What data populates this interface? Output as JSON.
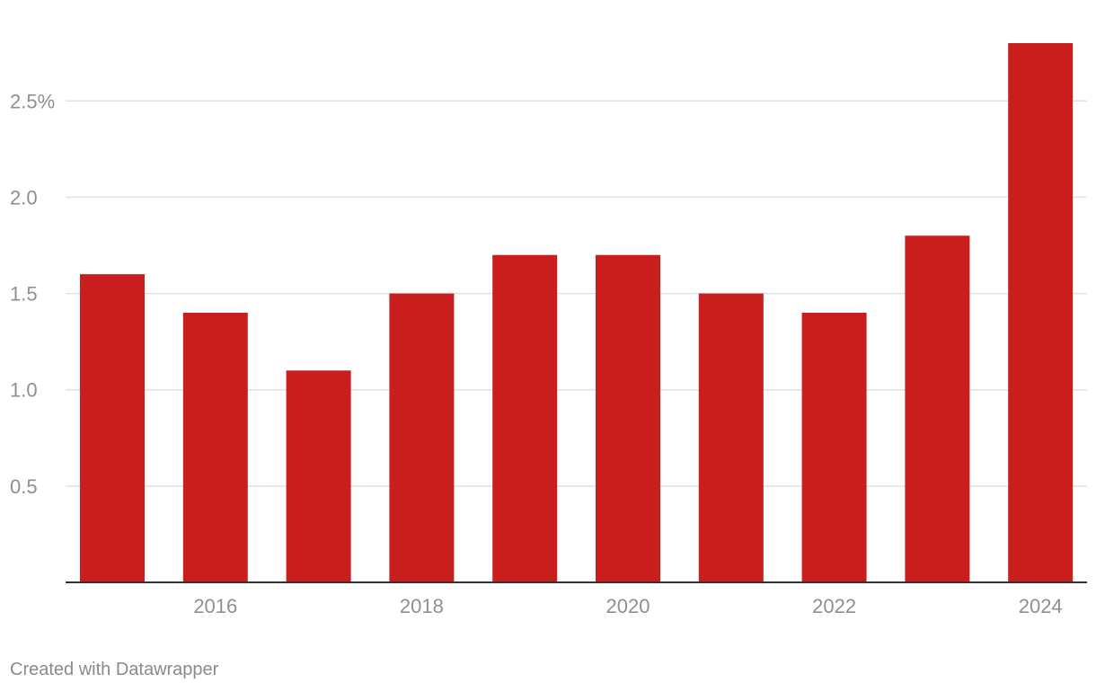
{
  "chart_data": {
    "type": "bar",
    "categories": [
      "2015",
      "2016",
      "2017",
      "2018",
      "2019",
      "2020",
      "2021",
      "2022",
      "2023",
      "2024"
    ],
    "values": [
      1.6,
      1.4,
      1.1,
      1.5,
      1.7,
      1.7,
      1.5,
      1.4,
      1.8,
      2.8
    ],
    "x_tick_labels": [
      "2016",
      "2018",
      "2020",
      "2022",
      "2024"
    ],
    "y_ticks": [
      0.5,
      1.0,
      1.5,
      2.0,
      2.5
    ],
    "y_tick_labels": [
      "0.5",
      "1.0",
      "1.5",
      "2.0",
      "2.5%"
    ],
    "ylim": [
      0,
      2.8
    ],
    "grid": true,
    "bar_color": "#c91d1e",
    "grid_color": "#e0e0e0",
    "axis_color": "#333333"
  },
  "footer": {
    "credit": "Created with Datawrapper"
  }
}
